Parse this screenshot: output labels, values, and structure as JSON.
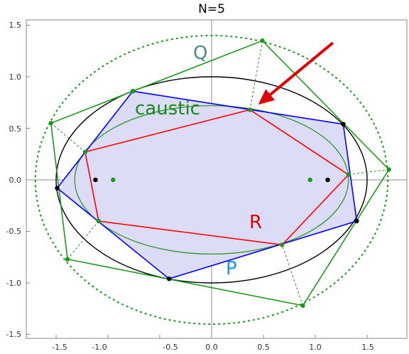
{
  "title": "N=5",
  "labels": {
    "caustic": "caustic",
    "Q": "Q",
    "R": "R",
    "P": "P"
  },
  "colors": {
    "Q": "#4f8a8b",
    "caustic": "#1a8a1a",
    "R": "#e00000",
    "P": "#1e90ff",
    "black": "#000000",
    "blue_polygon": "#0000ff",
    "red_polygon": "#ff0000",
    "green": "#1a9a1a",
    "fill": "#dcdcf6",
    "arrow": "#e00000"
  },
  "axes": {
    "x_range": [
      -1.85,
      1.85
    ],
    "y_range": [
      -1.55,
      1.55
    ],
    "x_ticks": [
      "-1.5",
      "-1.0",
      "-0.5",
      "0.0",
      "0.5",
      "1.0",
      "1.5"
    ],
    "y_ticks": [
      "1.5",
      "1.0",
      "0.5",
      "0.0",
      "-0.5",
      "-1.0",
      "-1.5"
    ]
  },
  "chart_data": {
    "type": "diagram",
    "ellipse_semi_axes": [
      1.5,
      1.0
    ],
    "caustic_semi_axes": [
      1.32,
      0.72
    ],
    "outer_circle_semi_axes": [
      1.7,
      1.4
    ],
    "Q_polygon": [
      [
        -0.76,
        0.86
      ],
      [
        0.49,
        1.35
      ],
      [
        1.71,
        0.1
      ],
      [
        0.88,
        -1.22
      ],
      [
        -1.39,
        -0.77
      ],
      [
        -1.55,
        0.55
      ]
    ],
    "P_polygon": [
      [
        -0.76,
        0.86
      ],
      [
        1.27,
        0.54
      ],
      [
        1.4,
        -0.4
      ],
      [
        -0.41,
        -0.96
      ],
      [
        -1.49,
        -0.08
      ]
    ],
    "R_polygon": [
      [
        0.37,
        0.68
      ],
      [
        1.32,
        0.05
      ],
      [
        0.68,
        -0.63
      ],
      [
        -1.09,
        -0.4
      ],
      [
        -1.22,
        0.27
      ]
    ],
    "foci_black": [
      [
        -1.12,
        0.0
      ],
      [
        1.12,
        0.0
      ]
    ],
    "foci_green": [
      [
        -0.95,
        0.0
      ],
      [
        0.95,
        0.0
      ]
    ],
    "arrow": {
      "from": [
        1.17,
        1.33
      ],
      "to": [
        0.45,
        0.73
      ]
    }
  }
}
